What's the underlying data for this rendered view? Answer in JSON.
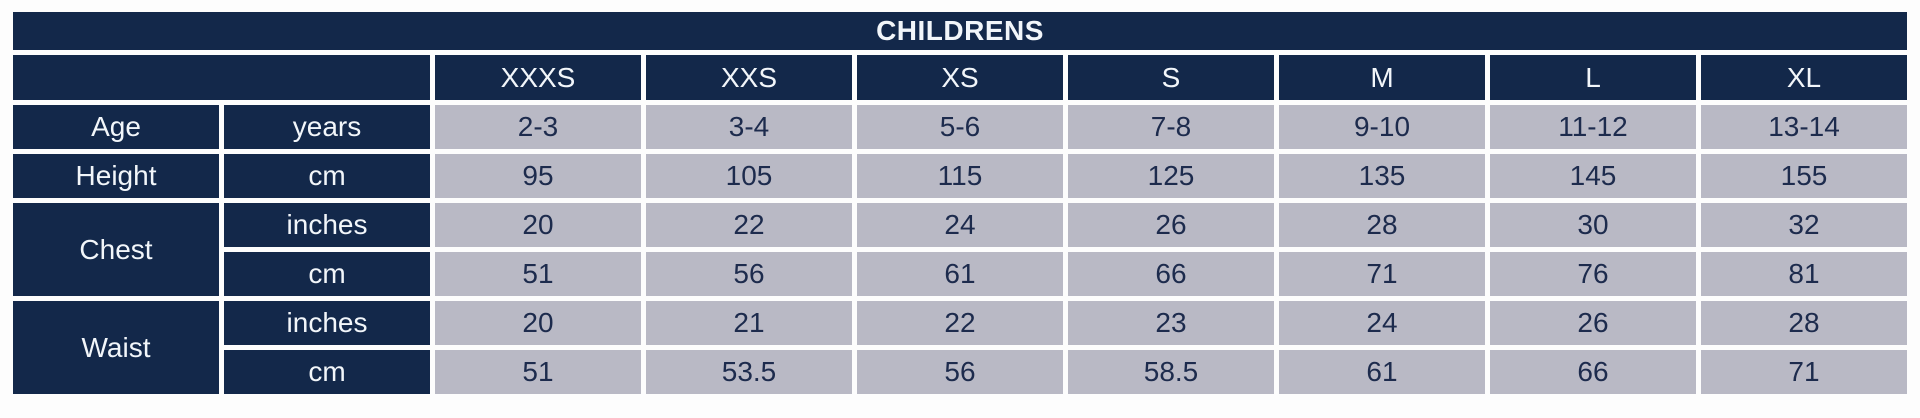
{
  "table": {
    "title": "CHILDRENS",
    "sizes": [
      "XXXS",
      "XXS",
      "XS",
      "S",
      "M",
      "L",
      "XL"
    ],
    "measurements": [
      {
        "label": "Age",
        "rows": [
          {
            "unit": "years",
            "values": [
              "2-3",
              "3-4",
              "5-6",
              "7-8",
              "9-10",
              "11-12",
              "13-14"
            ]
          }
        ]
      },
      {
        "label": "Height",
        "rows": [
          {
            "unit": "cm",
            "values": [
              "95",
              "105",
              "115",
              "125",
              "135",
              "145",
              "155"
            ]
          }
        ]
      },
      {
        "label": "Chest",
        "rows": [
          {
            "unit": "inches",
            "values": [
              "20",
              "22",
              "24",
              "26",
              "28",
              "30",
              "32"
            ]
          },
          {
            "unit": "cm",
            "values": [
              "51",
              "56",
              "61",
              "66",
              "71",
              "76",
              "81"
            ]
          }
        ]
      },
      {
        "label": "Waist",
        "rows": [
          {
            "unit": "inches",
            "values": [
              "20",
              "21",
              "22",
              "23",
              "24",
              "26",
              "28"
            ]
          },
          {
            "unit": "cm",
            "values": [
              "51",
              "53.5",
              "56",
              "58.5",
              "61",
              "66",
              "71"
            ]
          }
        ]
      }
    ]
  },
  "colors": {
    "header_bg": "#13284a",
    "header_text": "#f2f6fa",
    "cell_bg": "#b9b9c5",
    "cell_text": "#1d2b4d",
    "page_bg": "#fdfdfd"
  }
}
